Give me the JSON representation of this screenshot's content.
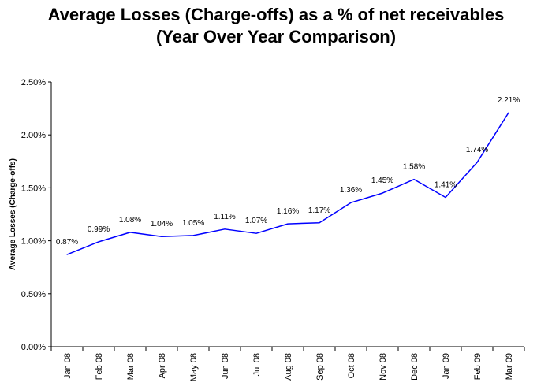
{
  "chart_data": {
    "type": "line",
    "title": "Average Losses (Charge-offs) as a % of net receivables",
    "subtitle": "(Year Over Year Comparison)",
    "xlabel": "",
    "ylabel": "Average Losses (Charge-offs)",
    "categories": [
      "Jan 08",
      "Feb 08",
      "Mar 08",
      "Apr 08",
      "May 08",
      "Jun 08",
      "Jul 08",
      "Aug 08",
      "Sep 08",
      "Oct 08",
      "Nov 08",
      "Dec 08",
      "Jan 09",
      "Feb 09",
      "Mar 09"
    ],
    "series": [
      {
        "values": [
          0.87,
          0.99,
          1.08,
          1.04,
          1.05,
          1.11,
          1.07,
          1.16,
          1.17,
          1.36,
          1.45,
          1.58,
          1.41,
          1.74,
          2.21
        ],
        "labels": [
          "0.87%",
          "0.99%",
          "1.08%",
          "1.04%",
          "1.05%",
          "1.11%",
          "1.07%",
          "1.16%",
          "1.17%",
          "1.36%",
          "1.45%",
          "1.58%",
          "1.41%",
          "1.74%",
          "2.21%"
        ],
        "color": "#0000ff"
      }
    ],
    "ylim": [
      0,
      2.5
    ],
    "yticks": [
      0,
      0.5,
      1.0,
      1.5,
      2.0,
      2.5
    ],
    "ytick_labels": [
      "0.00%",
      "0.50%",
      "1.00%",
      "1.50%",
      "2.00%",
      "2.50%"
    ],
    "grid": false,
    "legend": "none"
  }
}
